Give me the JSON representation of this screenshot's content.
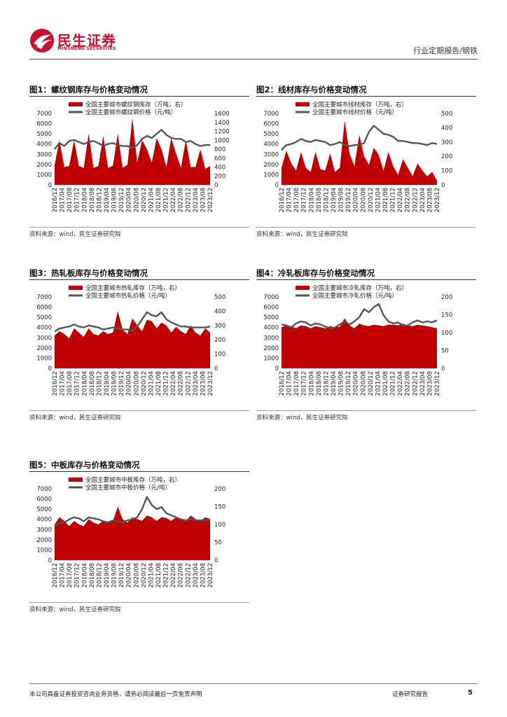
{
  "header": {
    "logo_cn": "民生证券",
    "logo_en": "MINSHENG SECURITIES",
    "report_type": "行业定期报告/钢铁",
    "brand_color": "#c8102e"
  },
  "footer": {
    "disclaimer": "本公司具备证券投资咨询业务资格，请务必阅读最后一页免责声明",
    "report_label": "证券研究报告",
    "page_number": "5"
  },
  "colors": {
    "inventory": "#c00000",
    "price": "#555555"
  },
  "panels": [
    {
      "title": "图1：螺纹钢库存与价格变动情况",
      "source": "资料来源：wind，民生证券研究院"
    },
    {
      "title": "图2：线材库存与价格变动情况",
      "source": "资料来源：wind，民生证券研究院"
    },
    {
      "title": "图3：热轧板库存与价格变动情况",
      "source": "资料来源：wind，民生证券研究院"
    },
    {
      "title": "图4：冷轧板库存与价格变动情况",
      "source": "资料来源：wind，民生证券研究院"
    },
    {
      "title": "图5：中板库存与价格变动情况",
      "source": "资料来源：wind，民生证券研究院"
    }
  ],
  "chart_data": [
    {
      "type": "area",
      "series": [
        {
          "name": "全国主要城市螺纹钢库存（万吨，右）",
          "axis": "right",
          "kind": "area",
          "values": [
            450,
            1000,
            400,
            420,
            1000,
            420,
            380,
            1150,
            380,
            420,
            1100,
            380,
            430,
            1150,
            380,
            450,
            1500,
            500,
            1000,
            800,
            500,
            1050,
            800,
            400,
            1050,
            700,
            380,
            1000,
            400,
            400,
            800,
            360,
            420
          ]
        },
        {
          "name": "全国主要城市螺纹钢价格（元/吨）",
          "axis": "left",
          "kind": "line",
          "values": [
            3500,
            4100,
            3800,
            4300,
            4400,
            4200,
            4000,
            4200,
            4300,
            4100,
            3800,
            4000,
            4100,
            3900,
            3800,
            3800,
            3600,
            3900,
            4500,
            4800,
            4600,
            5000,
            5400,
            4900,
            4600,
            4500,
            4500,
            4200,
            4300,
            4000,
            3800,
            3900,
            3900
          ]
        }
      ],
      "x_ticks": [
        "2016/12",
        "2017/04",
        "2017/08",
        "2017/12",
        "2018/04",
        "2018/08",
        "2018/12",
        "2019/04",
        "2019/08",
        "2019/12",
        "2020/04",
        "2020/08",
        "2020/12",
        "2021/04",
        "2021/08",
        "2021/12",
        "2022/04",
        "2022/08",
        "2022/12",
        "2023/04",
        "2023/08",
        "2023/12"
      ],
      "y_left": {
        "min": 0,
        "max": 7000,
        "ticks": [
          0,
          1000,
          2000,
          3000,
          4000,
          5000,
          6000,
          7000
        ]
      },
      "y_right": {
        "min": 0,
        "max": 1600,
        "ticks": [
          0,
          200,
          400,
          600,
          800,
          1000,
          1200,
          1400,
          1600
        ]
      }
    },
    {
      "type": "area",
      "series": [
        {
          "name": "全国主要城市线材库存（万吨，右）",
          "axis": "right",
          "kind": "area",
          "values": [
            120,
            240,
            150,
            100,
            230,
            120,
            90,
            230,
            110,
            100,
            220,
            90,
            120,
            450,
            220,
            130,
            350,
            200,
            140,
            260,
            210,
            100,
            230,
            130,
            70,
            180,
            120,
            60,
            150,
            100,
            60,
            90,
            30
          ]
        },
        {
          "name": "全国主要城市线材价格（元/吨）",
          "axis": "left",
          "kind": "line",
          "values": [
            3400,
            3900,
            4000,
            4200,
            4500,
            4300,
            4200,
            4400,
            4300,
            4200,
            3900,
            4000,
            4200,
            3900,
            3800,
            3900,
            3900,
            4100,
            5200,
            5800,
            5400,
            5000,
            4900,
            4700,
            4300,
            4300,
            4200,
            4100,
            4100,
            4000,
            3900,
            4100,
            4000
          ]
        }
      ],
      "x_ticks": [
        "2016/12",
        "2017/04",
        "2017/08",
        "2017/12",
        "2018/04",
        "2018/08",
        "2018/12",
        "2019/04",
        "2019/08",
        "2019/12",
        "2020/04",
        "2020/08",
        "2020/12",
        "2021/04",
        "2021/08",
        "2021/12",
        "2022/04",
        "2022/08",
        "2022/12",
        "2023/04",
        "2023/08",
        "2023/12"
      ],
      "y_left": {
        "min": 0,
        "max": 7000,
        "ticks": [
          0,
          1000,
          2000,
          3000,
          4000,
          5000,
          6000,
          7000
        ]
      },
      "y_right": {
        "min": 0,
        "max": 500,
        "ticks": [
          0,
          100,
          200,
          300,
          400,
          500
        ]
      }
    },
    {
      "type": "area",
      "series": [
        {
          "name": "全国主要城市热轧库存（万吨，右）",
          "axis": "right",
          "kind": "area",
          "values": [
            230,
            260,
            240,
            210,
            280,
            250,
            220,
            280,
            240,
            230,
            260,
            240,
            250,
            400,
            270,
            240,
            350,
            300,
            260,
            340,
            330,
            280,
            320,
            300,
            250,
            290,
            260,
            240,
            300,
            250,
            230,
            280,
            250
          ]
        },
        {
          "name": "全国主要城市热轧价格（元/吨）",
          "axis": "left",
          "kind": "line",
          "values": [
            3600,
            3900,
            4000,
            4100,
            4300,
            4100,
            4000,
            4200,
            4100,
            4000,
            3800,
            3900,
            4000,
            3900,
            3800,
            3800,
            3700,
            4100,
            4800,
            5500,
            5200,
            5100,
            5500,
            4800,
            4500,
            4300,
            4100,
            4100,
            4000,
            4000,
            4000,
            4000,
            4100
          ]
        }
      ],
      "x_ticks": [
        "2016/12",
        "2017/04",
        "2017/08",
        "2017/12",
        "2018/04",
        "2018/08",
        "2018/12",
        "2019/04",
        "2019/08",
        "2019/12",
        "2020/04",
        "2020/08",
        "2020/12",
        "2021/04",
        "2021/08",
        "2021/12",
        "2022/04",
        "2022/08",
        "2022/12",
        "2023/04",
        "2023/08",
        "2023/12"
      ],
      "y_left": {
        "min": 0,
        "max": 7000,
        "ticks": [
          0,
          1000,
          2000,
          3000,
          4000,
          5000,
          6000,
          7000
        ]
      },
      "y_right": {
        "min": 0,
        "max": 500,
        "ticks": [
          0,
          100,
          200,
          300,
          400,
          500
        ]
      }
    },
    {
      "type": "area",
      "series": [
        {
          "name": "全国主要城市冷轧库存（万吨，右）",
          "axis": "right",
          "kind": "area",
          "values": [
            115,
            120,
            118,
            112,
            120,
            118,
            112,
            118,
            115,
            112,
            118,
            115,
            116,
            140,
            120,
            112,
            125,
            120,
            118,
            122,
            120,
            118,
            122,
            122,
            120,
            125,
            120,
            118,
            122,
            120,
            118,
            115,
            112
          ]
        },
        {
          "name": "全国主要城市冷轧价格（元/吨）",
          "axis": "left",
          "kind": "line",
          "values": [
            4300,
            4200,
            4000,
            4400,
            4600,
            4500,
            4200,
            4400,
            4300,
            4100,
            3900,
            4000,
            4300,
            4600,
            4300,
            4600,
            5000,
            5800,
            5500,
            6000,
            6300,
            5200,
            4600,
            4400,
            4500,
            4200,
            4200,
            4500,
            4700,
            4500,
            4600,
            4500,
            4700
          ]
        }
      ],
      "x_ticks": [
        "2016/12",
        "2017/04",
        "2017/08",
        "2017/12",
        "2018/04",
        "2018/08",
        "2018/12",
        "2019/04",
        "2019/08",
        "2019/12",
        "2020/04",
        "2020/08",
        "2020/12",
        "2021/04",
        "2021/08",
        "2021/12",
        "2022/04",
        "2022/08",
        "2022/12",
        "2023/04",
        "2023/08",
        "2023/12"
      ],
      "y_left": {
        "min": 0,
        "max": 7000,
        "ticks": [
          0,
          1000,
          2000,
          3000,
          4000,
          5000,
          6000,
          7000
        ]
      },
      "y_right": {
        "min": 0,
        "max": 200,
        "ticks": [
          0,
          50,
          100,
          150,
          200
        ]
      }
    },
    {
      "type": "area",
      "series": [
        {
          "name": "全国主要城市中板库存（万吨，右）",
          "axis": "right",
          "kind": "area",
          "values": [
            100,
            120,
            110,
            95,
            110,
            100,
            95,
            115,
            105,
            100,
            110,
            105,
            110,
            150,
            115,
            105,
            120,
            115,
            110,
            125,
            120,
            110,
            120,
            118,
            110,
            120,
            115,
            108,
            125,
            115,
            110,
            120,
            115
          ]
        },
        {
          "name": "全国主要城市中板价格（元/吨）",
          "axis": "left",
          "kind": "line",
          "values": [
            3400,
            3600,
            3700,
            4000,
            4200,
            4100,
            3800,
            4200,
            4100,
            4000,
            3800,
            3700,
            3900,
            3800,
            3700,
            3900,
            4000,
            4200,
            5000,
            6200,
            5400,
            5000,
            5200,
            4600,
            4400,
            4200,
            4000,
            3900,
            4000,
            3900,
            3900,
            3900,
            4000
          ]
        }
      ],
      "x_ticks": [
        "2016/12",
        "2017/04",
        "2017/08",
        "2017/12",
        "2018/04",
        "2018/08",
        "2018/12",
        "2019/04",
        "2019/08",
        "2019/12",
        "2020/04",
        "2020/08",
        "2020/12",
        "2021/04",
        "2021/08",
        "2021/12",
        "2022/04",
        "2022/08",
        "2022/12",
        "2023/04",
        "2023/08",
        "2023/12"
      ],
      "y_left": {
        "min": 0,
        "max": 7000,
        "ticks": [
          0,
          1000,
          2000,
          3000,
          4000,
          5000,
          6000,
          7000
        ]
      },
      "y_right": {
        "min": 0,
        "max": 200,
        "ticks": [
          0,
          50,
          100,
          150,
          200
        ]
      }
    }
  ]
}
